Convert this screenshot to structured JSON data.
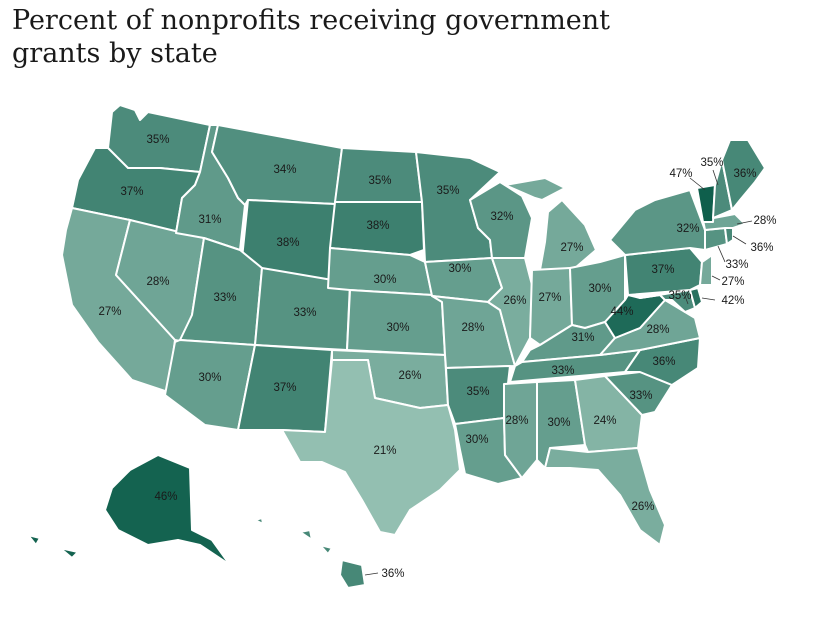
{
  "title": "Percent of nonprofits receiving government grants by state",
  "colors": {
    "background": "#ffffff",
    "border": "#ffffff",
    "scale_low": "#93bfb1",
    "scale_high": "#0f5f4c"
  },
  "map": {
    "type": "choropleth",
    "region": "United States",
    "states": [
      {
        "id": "WA",
        "label": "35%",
        "value": 35
      },
      {
        "id": "OR",
        "label": "37%",
        "value": 37
      },
      {
        "id": "CA",
        "label": "27%",
        "value": 27
      },
      {
        "id": "ID",
        "label": "31%",
        "value": 31
      },
      {
        "id": "NV",
        "label": "28%",
        "value": 28
      },
      {
        "id": "MT",
        "label": "34%",
        "value": 34
      },
      {
        "id": "WY",
        "label": "38%",
        "value": 38
      },
      {
        "id": "UT",
        "label": "33%",
        "value": 33
      },
      {
        "id": "AZ",
        "label": "30%",
        "value": 30
      },
      {
        "id": "CO",
        "label": "33%",
        "value": 33
      },
      {
        "id": "NM",
        "label": "37%",
        "value": 37
      },
      {
        "id": "ND",
        "label": "35%",
        "value": 35
      },
      {
        "id": "SD",
        "label": "38%",
        "value": 38
      },
      {
        "id": "NE",
        "label": "30%",
        "value": 30
      },
      {
        "id": "KS",
        "label": "30%",
        "value": 30
      },
      {
        "id": "OK",
        "label": "26%",
        "value": 26
      },
      {
        "id": "TX",
        "label": "21%",
        "value": 21
      },
      {
        "id": "MN",
        "label": "35%",
        "value": 35
      },
      {
        "id": "IA",
        "label": "30%",
        "value": 30
      },
      {
        "id": "MO",
        "label": "28%",
        "value": 28
      },
      {
        "id": "AR",
        "label": "35%",
        "value": 35
      },
      {
        "id": "LA",
        "label": "30%",
        "value": 30
      },
      {
        "id": "WI",
        "label": "32%",
        "value": 32
      },
      {
        "id": "IL",
        "label": "26%",
        "value": 26
      },
      {
        "id": "MI",
        "label": "27%",
        "value": 27
      },
      {
        "id": "IN",
        "label": "27%",
        "value": 27
      },
      {
        "id": "OH",
        "label": "30%",
        "value": 30
      },
      {
        "id": "KY",
        "label": "31%",
        "value": 31
      },
      {
        "id": "TN",
        "label": "33%",
        "value": 33
      },
      {
        "id": "MS",
        "label": "28%",
        "value": 28
      },
      {
        "id": "AL",
        "label": "30%",
        "value": 30
      },
      {
        "id": "GA",
        "label": "24%",
        "value": 24
      },
      {
        "id": "FL",
        "label": "26%",
        "value": 26
      },
      {
        "id": "SC",
        "label": "33%",
        "value": 33
      },
      {
        "id": "NC",
        "label": "36%",
        "value": 36
      },
      {
        "id": "VA",
        "label": "28%",
        "value": 28
      },
      {
        "id": "WV",
        "label": "44%",
        "value": 44
      },
      {
        "id": "MD",
        "label": "35%",
        "value": 35
      },
      {
        "id": "DE",
        "label": "42%",
        "value": 42
      },
      {
        "id": "PA",
        "label": "37%",
        "value": 37
      },
      {
        "id": "NY",
        "label": "32%",
        "value": 32
      },
      {
        "id": "NJ",
        "label": "27%",
        "value": 27
      },
      {
        "id": "CT",
        "label": "33%",
        "value": 33
      },
      {
        "id": "RI",
        "label": "36%",
        "value": 36
      },
      {
        "id": "MA",
        "label": "28%",
        "value": 28
      },
      {
        "id": "VT",
        "label": "47%",
        "value": 47
      },
      {
        "id": "NH",
        "label": "35%",
        "value": 35
      },
      {
        "id": "ME",
        "label": "36%",
        "value": 36
      },
      {
        "id": "AK",
        "label": "46%",
        "value": 46
      },
      {
        "id": "HI",
        "label": "36%",
        "value": 36
      }
    ]
  }
}
